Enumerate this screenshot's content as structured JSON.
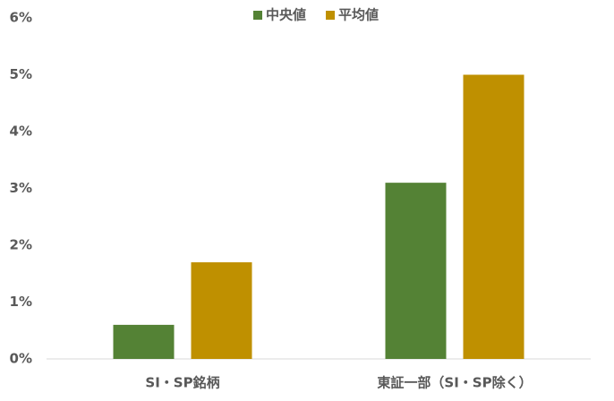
{
  "chart_data": {
    "type": "bar",
    "categories": [
      "SI・SP銘柄",
      "東証一部（SI・SP除く）"
    ],
    "series": [
      {
        "name": "中央値",
        "color": "#548235",
        "values": [
          0.6,
          3.1
        ]
      },
      {
        "name": "平均値",
        "color": "#bf9000",
        "values": [
          1.7,
          5.0
        ]
      }
    ],
    "ylim": [
      0,
      6
    ],
    "yticks": [
      {
        "value": 0,
        "label": "0%"
      },
      {
        "value": 1,
        "label": "1%"
      },
      {
        "value": 2,
        "label": "2%"
      },
      {
        "value": 3,
        "label": "3%"
      },
      {
        "value": 4,
        "label": "4%"
      },
      {
        "value": 5,
        "label": "5%"
      },
      {
        "value": 6,
        "label": "6%"
      }
    ],
    "grid": false,
    "legend": "top"
  }
}
